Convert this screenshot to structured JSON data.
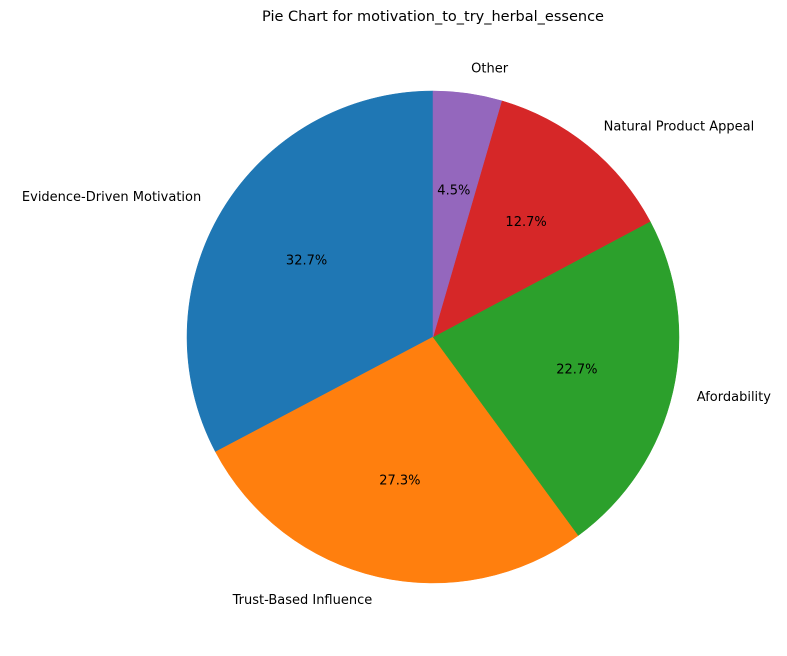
{
  "chart_data": {
    "type": "pie",
    "title": "Pie Chart for motivation_to_try_herbal_essence",
    "categories": [
      "Evidence-Driven Motivation",
      "Trust-Based Influence",
      "Afordability",
      "Natural Product Appeal",
      "Other"
    ],
    "values": [
      32.7,
      27.3,
      22.7,
      12.7,
      4.5
    ],
    "value_labels": [
      "32.7%",
      "27.3%",
      "22.7%",
      "12.7%",
      "4.5%"
    ],
    "colors": [
      "#1f77b4",
      "#ff7f0e",
      "#2ca02c",
      "#d62728",
      "#9467bd"
    ],
    "start_angle_deg": 90,
    "direction": "counterclockwise"
  }
}
